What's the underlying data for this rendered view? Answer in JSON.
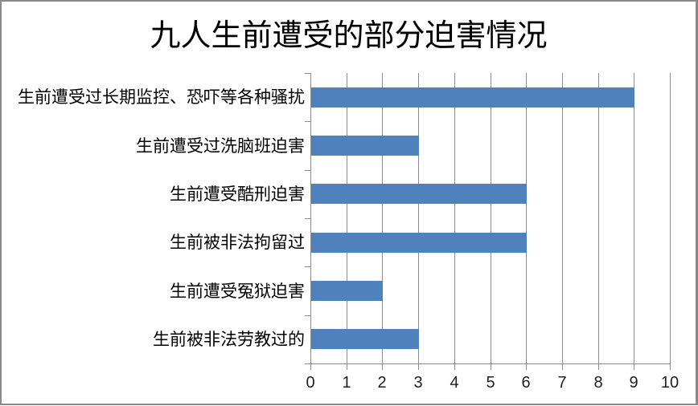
{
  "chart_data": {
    "type": "bar",
    "orientation": "horizontal",
    "title": "九人生前遭受的部分迫害情况",
    "categories": [
      "生前遭受过长期监控、恐吓等各种骚扰",
      "生前遭受过洗脑班迫害",
      "生前遭受酷刑迫害",
      "生前被非法拘留过",
      "生前遭受冤狱迫害",
      "生前被非法劳教过的"
    ],
    "values": [
      9,
      3,
      6,
      6,
      2,
      3
    ],
    "xlabel": "",
    "ylabel": "",
    "xlim": [
      0,
      10
    ],
    "x_tick_labels": [
      "0",
      "1",
      "2",
      "3",
      "4",
      "5",
      "6",
      "7",
      "8",
      "9",
      "10"
    ],
    "grid": true,
    "legend": "none",
    "colors": {
      "bar": "#4F81BD",
      "gridline": "#8c8c8c",
      "axis": "#8c8c8c",
      "title_text": "#000000",
      "label_text": "#000000",
      "tick_text": "#1f1f1f",
      "background": "#ffffff",
      "frame_border": "#8a8a8a"
    }
  }
}
